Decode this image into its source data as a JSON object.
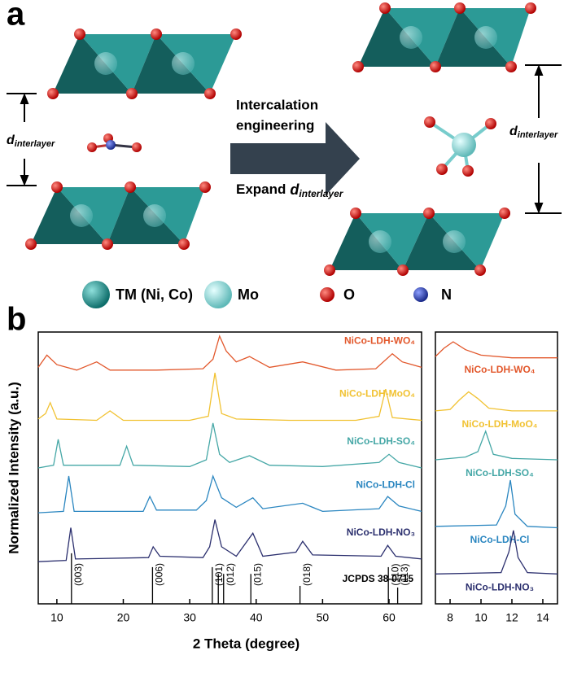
{
  "panel_a": {
    "label": "a",
    "arrow_text": [
      "Intercalation",
      "engineering"
    ],
    "expand_text": "Expand",
    "d_symbol": "d",
    "d_subscript": "interlayer",
    "legend": [
      "TM (Ni, Co)",
      "Mo",
      "O",
      "N"
    ]
  },
  "panel_b_label": "b",
  "chart_data": [
    {
      "type": "line",
      "xlabel": "2 Theta (degree)",
      "ylabel": "Normalized Intensity (a.u.)",
      "xlim": [
        7.2,
        64.9
      ],
      "xticks": [
        10,
        20,
        30,
        40,
        50,
        60
      ],
      "ylim": [
        0,
        100
      ],
      "series": [
        {
          "name": "NiCo-LDH-WO₄",
          "color": "#e2572b",
          "x": [
            7.2,
            8.5,
            10,
            13,
            16,
            18,
            25,
            32,
            33.5,
            34.5,
            35.5,
            37,
            39,
            42,
            47,
            52,
            58,
            60.5,
            62,
            64.9
          ],
          "values": [
            87,
            91.5,
            88,
            86,
            89,
            86,
            86,
            86.5,
            90,
            98.5,
            93,
            89,
            91,
            87,
            89,
            86,
            86.5,
            92,
            89,
            87
          ]
        },
        {
          "name": "NiCo-LDH-MoO₄",
          "color": "#f1c232",
          "x": [
            7.2,
            8.3,
            9,
            10,
            16,
            18,
            20,
            30,
            32.8,
            33.8,
            34.8,
            37,
            45,
            55,
            58.5,
            59.5,
            60.5,
            64.9
          ],
          "values": [
            68,
            70,
            74,
            68,
            67.5,
            71,
            67.5,
            67.5,
            69,
            85,
            70,
            68,
            67.5,
            67.5,
            69,
            79,
            68.5,
            67.5
          ]
        },
        {
          "name": "NiCo-LDH-SO₄",
          "color": "#45a7a6",
          "x": [
            7.2,
            9.5,
            10.2,
            11,
            19.5,
            20.5,
            21.5,
            30,
            32.5,
            33.5,
            34.5,
            36,
            39,
            42,
            50,
            58.5,
            60,
            61.5,
            64.9
          ],
          "values": [
            50,
            51,
            60.5,
            51,
            51,
            58,
            51,
            50.5,
            53,
            66.5,
            55,
            52,
            54.5,
            51,
            50.5,
            52,
            55,
            52,
            50
          ]
        },
        {
          "name": "NiCo-LDH-Cl",
          "color": "#2a86c0",
          "x": [
            7.2,
            11,
            11.8,
            12.6,
            23,
            24,
            25,
            31,
            32.5,
            33.5,
            34.8,
            37,
            39.5,
            41,
            47,
            50,
            58.5,
            59.8,
            61.5,
            64.9
          ],
          "values": [
            33.5,
            34,
            47,
            34,
            34,
            39.5,
            34.5,
            34.5,
            38,
            47,
            39,
            35.5,
            39,
            35,
            37,
            34,
            35,
            39.5,
            36,
            34
          ]
        },
        {
          "name": "NiCo-LDH-NO₃",
          "color": "#2b2f6e",
          "x": [
            7.2,
            11.4,
            12.1,
            12.8,
            23.8,
            24.5,
            25.5,
            32,
            33,
            33.8,
            34.8,
            37,
            39.5,
            41,
            46,
            47,
            48.5,
            58.8,
            59.8,
            61,
            64.9
          ],
          "values": [
            15.5,
            16,
            28,
            16.5,
            17,
            21,
            17.5,
            17,
            21,
            31,
            21,
            17.5,
            26,
            17.5,
            19,
            23,
            18,
            17.5,
            21.5,
            17.5,
            16.5
          ]
        }
      ],
      "reference": {
        "name": "JCPDS 38-0715",
        "color": "#000000",
        "x": [
          12.2,
          24.4,
          33.4,
          34.3,
          35.1,
          39.2,
          46.6,
          59.9,
          61.3
        ],
        "values": [
          18.6,
          13.5,
          13.5,
          11,
          11,
          11,
          6.6,
          13.5,
          6
        ],
        "labels": [
          "(003)",
          "(006)",
          "(101)",
          null,
          "(012)",
          "(015)",
          "(018)",
          "(110)",
          "(113)"
        ]
      }
    },
    {
      "type": "line",
      "xlim": [
        7.05,
        14.95
      ],
      "xticks": [
        8,
        10,
        12,
        14
      ],
      "ylim": [
        0,
        100
      ],
      "series": [
        {
          "name": "NiCo-LDH-WO₄",
          "color": "#e2572b",
          "x": [
            7.05,
            7.6,
            8.2,
            9,
            10,
            12,
            14.95
          ],
          "values": [
            91,
            94,
            96.4,
            93.5,
            91.5,
            90.5,
            90.5
          ]
        },
        {
          "name": "NiCo-LDH-MoO₄",
          "color": "#f1c232",
          "x": [
            7.05,
            8,
            8.6,
            9.2,
            9.8,
            10.5,
            12,
            14.95
          ],
          "values": [
            71,
            71.5,
            75,
            78,
            75.5,
            72,
            71,
            71
          ]
        },
        {
          "name": "NiCo-LDH-SO₄",
          "color": "#45a7a6",
          "x": [
            7.05,
            9,
            9.8,
            10.3,
            10.8,
            12,
            14.95
          ],
          "values": [
            53,
            54,
            56,
            63.5,
            55,
            53.5,
            53
          ]
        },
        {
          "name": "NiCo-LDH-Cl",
          "color": "#2a86c0",
          "x": [
            7.05,
            11,
            11.6,
            11.9,
            12.2,
            13,
            14.95
          ],
          "values": [
            28.5,
            29,
            36,
            45.5,
            33,
            28.5,
            28
          ]
        },
        {
          "name": "NiCo-LDH-NO₃",
          "color": "#2b2f6e",
          "x": [
            7.05,
            11.3,
            11.8,
            12.1,
            12.4,
            13,
            14.95
          ],
          "values": [
            11,
            11.5,
            19,
            27,
            17,
            11.5,
            11
          ]
        }
      ]
    }
  ]
}
